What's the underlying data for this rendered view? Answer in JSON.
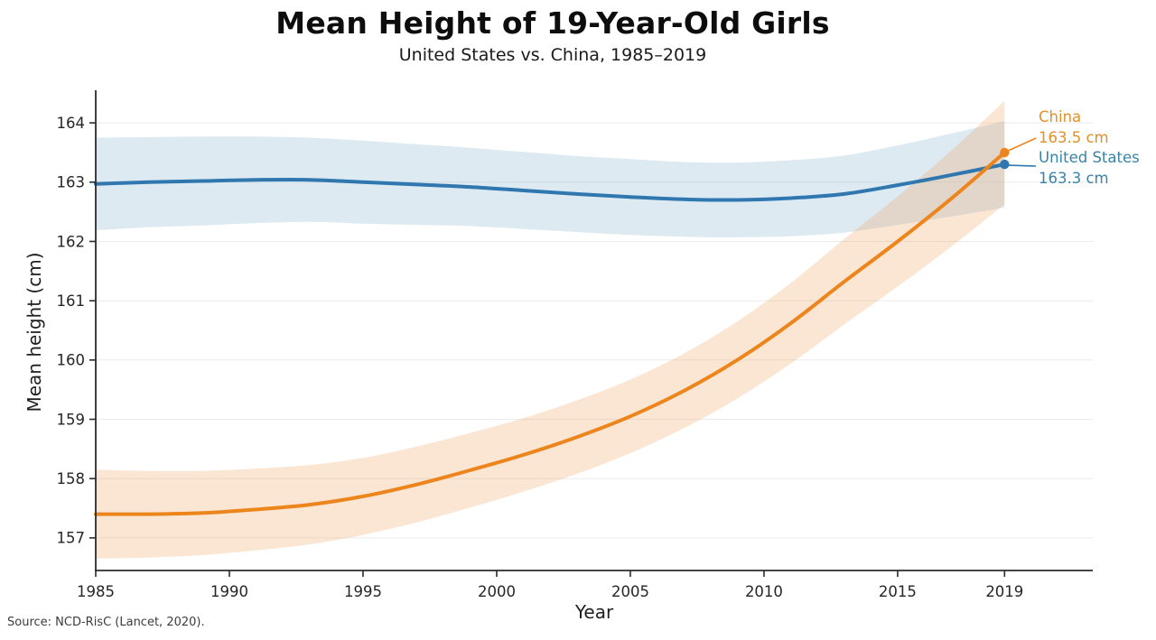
{
  "chart_data": {
    "type": "line",
    "title": "Mean Height of 19-Year-Old Girls",
    "subtitle": "United States vs. China, 1985–2019",
    "xlabel": "Year",
    "ylabel": "Mean height (cm)",
    "source": "Source: NCD-RisC (Lancet, 2020).",
    "xlim": [
      1985,
      2022.3
    ],
    "ylim": [
      156.45,
      164.55
    ],
    "grid": "horizontal",
    "grid_color": "#ebebeb",
    "axis_color": "#2b2b2b",
    "x_ticks": [
      1985,
      1990,
      1995,
      2000,
      2005,
      2010,
      2015,
      2019
    ],
    "y_ticks": [
      157,
      158,
      159,
      160,
      161,
      162,
      163,
      164
    ],
    "x": [
      1985,
      1987,
      1989,
      1991,
      1993,
      1995,
      1997,
      1999,
      2001,
      2003,
      2005,
      2007,
      2009,
      2011,
      2013,
      2015,
      2017,
      2019
    ],
    "series": [
      {
        "name": "United States",
        "end_value": "163.3 cm",
        "color": "#2f77ae",
        "label_color": "#3a83a8",
        "band_color": "#85b3d1",
        "band_opacity": 0.28,
        "values": [
          162.97,
          163.0,
          163.02,
          163.04,
          163.04,
          163.0,
          162.96,
          162.92,
          162.86,
          162.8,
          162.75,
          162.71,
          162.7,
          162.73,
          162.8,
          162.95,
          163.12,
          163.3
        ],
        "lower": [
          162.19,
          162.24,
          162.27,
          162.31,
          162.33,
          162.3,
          162.28,
          162.26,
          162.21,
          162.16,
          162.11,
          162.08,
          162.07,
          162.09,
          162.15,
          162.28,
          162.42,
          162.57
        ],
        "upper": [
          163.75,
          163.76,
          163.77,
          163.77,
          163.75,
          163.7,
          163.64,
          163.58,
          163.51,
          163.44,
          163.39,
          163.34,
          163.33,
          163.37,
          163.45,
          163.62,
          163.82,
          164.03
        ]
      },
      {
        "name": "China",
        "end_value": "163.5 cm",
        "color": "#ec851c",
        "label_color": "#e0912c",
        "band_color": "#f09d4f",
        "band_opacity": 0.25,
        "values": [
          157.4,
          157.4,
          157.42,
          157.48,
          157.56,
          157.7,
          157.9,
          158.14,
          158.4,
          158.7,
          159.05,
          159.48,
          160.0,
          160.62,
          161.32,
          162.0,
          162.72,
          163.5
        ],
        "lower": [
          156.65,
          156.67,
          156.71,
          156.79,
          156.89,
          157.05,
          157.26,
          157.51,
          157.78,
          158.08,
          158.43,
          158.85,
          159.35,
          159.94,
          160.6,
          161.24,
          161.91,
          162.63
        ],
        "upper": [
          158.15,
          158.13,
          158.13,
          158.17,
          158.23,
          158.35,
          158.54,
          158.77,
          159.02,
          159.32,
          159.67,
          160.11,
          160.65,
          161.3,
          162.04,
          162.76,
          163.53,
          164.37
        ]
      }
    ]
  }
}
